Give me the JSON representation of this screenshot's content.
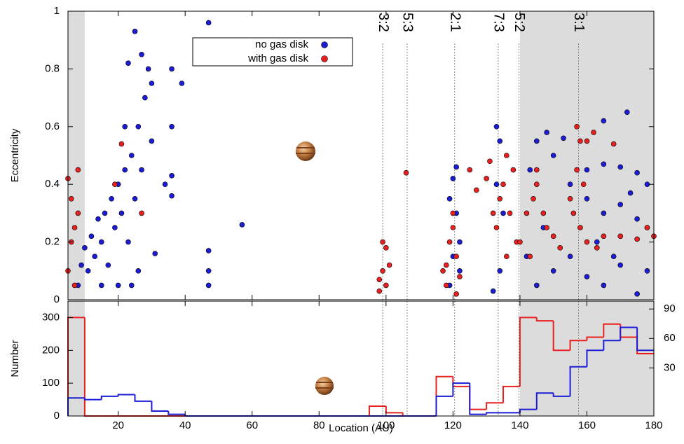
{
  "chart_data": [
    {
      "type": "scatter",
      "ylabel": "Eccentricity",
      "xlim": [
        5,
        180
      ],
      "ylim": [
        0,
        1
      ],
      "yticks": [
        0,
        0.2,
        0.4,
        0.6,
        0.8,
        1
      ],
      "shaded": [
        [
          5,
          10
        ],
        [
          140,
          180
        ]
      ],
      "resonances": [
        {
          "label": "3:2",
          "x": 99
        },
        {
          "label": "5:3",
          "x": 106.3
        },
        {
          "label": "2:1",
          "x": 120.5
        },
        {
          "label": "7:3",
          "x": 133.5
        },
        {
          "label": "5:2",
          "x": 139.7
        },
        {
          "label": "3:1",
          "x": 157.5
        }
      ],
      "series": [
        {
          "name": "no gas disk",
          "color": "#1c1cd6",
          "x": [
            8,
            9,
            10,
            11,
            12,
            13,
            14,
            15,
            16,
            17,
            18,
            19,
            20,
            21,
            22,
            23,
            24,
            25,
            26,
            27,
            28,
            25,
            23,
            27,
            29,
            30,
            26,
            20,
            15,
            22,
            30,
            24,
            36,
            39,
            36,
            36,
            34,
            36,
            31,
            47,
            47,
            47,
            47,
            57,
            119,
            120,
            121,
            120,
            121,
            122,
            119,
            122,
            133,
            134,
            133,
            132,
            134,
            135,
            145,
            148,
            150,
            153,
            143,
            165,
            172,
            160,
            165,
            170,
            175,
            178,
            160,
            165,
            170,
            175,
            178,
            155,
            150,
            160,
            165,
            170,
            175,
            145,
            142,
            147,
            178,
            163,
            168,
            155,
            158,
            173
          ],
          "y": [
            0.05,
            0.12,
            0.18,
            0.1,
            0.22,
            0.15,
            0.28,
            0.2,
            0.3,
            0.12,
            0.35,
            0.25,
            0.4,
            0.3,
            0.45,
            0.2,
            0.5,
            0.35,
            0.6,
            0.45,
            0.7,
            0.93,
            0.82,
            0.85,
            0.8,
            0.75,
            0.1,
            0.05,
            0.05,
            0.6,
            0.55,
            0.05,
            0.8,
            0.75,
            0.6,
            0.43,
            0.4,
            0.36,
            0.16,
            0.96,
            0.17,
            0.1,
            0.05,
            0.26,
            0.05,
            0.15,
            0.3,
            0.42,
            0.46,
            0.2,
            0.35,
            0.1,
            0.6,
            0.55,
            0.4,
            0.03,
            0.1,
            0.3,
            0.55,
            0.58,
            0.5,
            0.56,
            0.45,
            0.62,
            0.65,
            0.45,
            0.47,
            0.46,
            0.44,
            0.4,
            0.35,
            0.3,
            0.33,
            0.28,
            0.25,
            0.15,
            0.1,
            0.08,
            0.05,
            0.12,
            0.02,
            0.05,
            0.15,
            0.25,
            0.1,
            0.2,
            0.15,
            0.4,
            0.25,
            0.37
          ]
        },
        {
          "name": "with gas disk",
          "color": "#e82020",
          "x": [
            5,
            6,
            6,
            7,
            5,
            8,
            8,
            7,
            19,
            21,
            27,
            106,
            98,
            99,
            100,
            99,
            100,
            101,
            98,
            117,
            118,
            119,
            120,
            121,
            122,
            118,
            120,
            121,
            125,
            127,
            130,
            132,
            133,
            134,
            135,
            136,
            137,
            138,
            139,
            131,
            136,
            142,
            144,
            145,
            147,
            148,
            150,
            152,
            145,
            140,
            143,
            155,
            157,
            158,
            157,
            156,
            159,
            158,
            160,
            165,
            170,
            175,
            180,
            163,
            178,
            160,
            162,
            168
          ],
          "y": [
            0.42,
            0.35,
            0.2,
            0.05,
            0.1,
            0.45,
            0.3,
            0.25,
            0.4,
            0.54,
            0.3,
            0.44,
            0.03,
            0.1,
            0.18,
            0.2,
            0.05,
            0.12,
            0.07,
            0.1,
            0.05,
            0.2,
            0.3,
            0.15,
            0.08,
            0.12,
            0.25,
            0.02,
            0.45,
            0.38,
            0.42,
            0.3,
            0.25,
            0.35,
            0.4,
            0.5,
            0.3,
            0.45,
            0.2,
            0.48,
            0.15,
            0.3,
            0.35,
            0.4,
            0.3,
            0.25,
            0.22,
            0.18,
            0.45,
            0.2,
            0.15,
            0.35,
            0.45,
            0.55,
            0.6,
            0.3,
            0.4,
            0.25,
            0.2,
            0.22,
            0.22,
            0.21,
            0.22,
            0.18,
            0.25,
            0.55,
            0.58,
            0.54
          ]
        }
      ]
    },
    {
      "type": "histogram",
      "xlabel": "Location (AU)",
      "ylabel": "Number",
      "xlim": [
        5,
        180
      ],
      "ylim": [
        0,
        350
      ],
      "yticks": [
        0,
        100,
        200,
        300
      ],
      "y2lim": [
        -19,
        98
      ],
      "y2ticks": [
        30,
        60,
        90
      ],
      "xticks": [
        20,
        40,
        60,
        80,
        100,
        120,
        140,
        160,
        180
      ],
      "bins": [
        5,
        10,
        15,
        20,
        25,
        30,
        35,
        40,
        45,
        50,
        55,
        60,
        65,
        70,
        75,
        80,
        85,
        90,
        95,
        100,
        105,
        110,
        115,
        120,
        125,
        130,
        135,
        140,
        145,
        150,
        155,
        160,
        165,
        170,
        175,
        180
      ],
      "series": [
        {
          "name": "with gas disk",
          "color": "#e82020",
          "values": [
            300,
            0,
            0,
            0,
            0,
            0,
            0,
            0,
            0,
            0,
            0,
            0,
            0,
            0,
            0,
            0,
            0,
            0,
            30,
            10,
            0,
            0,
            120,
            90,
            20,
            40,
            90,
            300,
            290,
            200,
            230,
            240,
            280,
            240,
            190
          ]
        },
        {
          "name": "no gas disk",
          "color": "#1c1cd6",
          "values": [
            55,
            50,
            60,
            65,
            45,
            15,
            5,
            0,
            0,
            0,
            0,
            0,
            0,
            0,
            0,
            0,
            0,
            0,
            0,
            0,
            0,
            0,
            60,
            100,
            5,
            10,
            10,
            20,
            70,
            60,
            150,
            200,
            230,
            270,
            200
          ]
        }
      ]
    }
  ]
}
